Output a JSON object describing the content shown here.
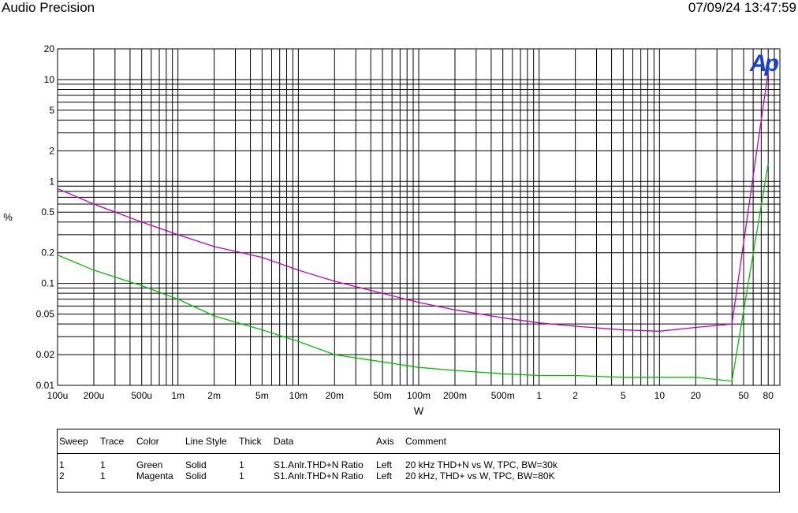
{
  "header": {
    "app_title": "Audio Precision",
    "timestamp": "07/09/24 13:47:59"
  },
  "chart_data": {
    "type": "line",
    "xlabel": "W",
    "ylabel": "%",
    "x_scale": "log",
    "y_scale": "log",
    "xlim": [
      0.0001,
      100
    ],
    "ylim": [
      0.01,
      20
    ],
    "grid": true,
    "logo": "Ap",
    "x_ticks": [
      {
        "v": 0.0001,
        "label": "100u"
      },
      {
        "v": 0.0002,
        "label": "200u"
      },
      {
        "v": 0.0005,
        "label": "500u"
      },
      {
        "v": 0.001,
        "label": "1m"
      },
      {
        "v": 0.002,
        "label": "2m"
      },
      {
        "v": 0.005,
        "label": "5m"
      },
      {
        "v": 0.01,
        "label": "10m"
      },
      {
        "v": 0.02,
        "label": "20m"
      },
      {
        "v": 0.05,
        "label": "50m"
      },
      {
        "v": 0.1,
        "label": "100m"
      },
      {
        "v": 0.2,
        "label": "200m"
      },
      {
        "v": 0.5,
        "label": "500m"
      },
      {
        "v": 1,
        "label": "1"
      },
      {
        "v": 2,
        "label": "2"
      },
      {
        "v": 5,
        "label": "5"
      },
      {
        "v": 10,
        "label": "10"
      },
      {
        "v": 20,
        "label": "20"
      },
      {
        "v": 50,
        "label": "50"
      },
      {
        "v": 80,
        "label": "80"
      }
    ],
    "y_ticks": [
      {
        "v": 20,
        "label": "20"
      },
      {
        "v": 10,
        "label": "10"
      },
      {
        "v": 5,
        "label": "5"
      },
      {
        "v": 2,
        "label": "2"
      },
      {
        "v": 1,
        "label": "1"
      },
      {
        "v": 0.5,
        "label": "0.5"
      },
      {
        "v": 0.2,
        "label": "0.2"
      },
      {
        "v": 0.1,
        "label": "0.1"
      },
      {
        "v": 0.05,
        "label": "0.05"
      },
      {
        "v": 0.02,
        "label": "0.02"
      },
      {
        "v": 0.01,
        "label": "0.01"
      }
    ],
    "series": [
      {
        "color": "#00c000",
        "x": [
          0.0001,
          0.0002,
          0.0005,
          0.001,
          0.002,
          0.005,
          0.01,
          0.02,
          0.05,
          0.1,
          0.2,
          0.5,
          1,
          2,
          5,
          10,
          20,
          40,
          80
        ],
        "y": [
          0.19,
          0.135,
          0.095,
          0.07,
          0.048,
          0.035,
          0.027,
          0.02,
          0.017,
          0.015,
          0.014,
          0.013,
          0.0125,
          0.0125,
          0.012,
          0.012,
          0.012,
          0.011,
          1.5
        ]
      },
      {
        "color": "#c000c0",
        "x": [
          0.0001,
          0.0002,
          0.0005,
          0.001,
          0.002,
          0.005,
          0.01,
          0.02,
          0.05,
          0.1,
          0.2,
          0.5,
          1,
          2,
          5,
          10,
          20,
          40,
          80
        ],
        "y": [
          0.85,
          0.6,
          0.4,
          0.3,
          0.23,
          0.18,
          0.135,
          0.105,
          0.08,
          0.065,
          0.055,
          0.046,
          0.041,
          0.038,
          0.035,
          0.034,
          0.037,
          0.04,
          12
        ]
      }
    ]
  },
  "legend": {
    "headers": {
      "sweep": "Sweep",
      "trace": "Trace",
      "color": "Color",
      "line_style": "Line Style",
      "thick": "Thick",
      "data": "Data",
      "axis": "Axis",
      "comment": "Comment"
    },
    "rows": [
      {
        "sweep": "1",
        "trace": "1",
        "color": "Green",
        "line_style": "Solid",
        "thick": "1",
        "data": "S1.Anlr.THD+N Ratio",
        "axis": "Left",
        "comment": "20 kHz THD+N vs W, TPC, BW=30k"
      },
      {
        "sweep": "2",
        "trace": "1",
        "color": "Magenta",
        "line_style": "Solid",
        "thick": "1",
        "data": "S1.Anlr.THD+N Ratio",
        "axis": "Left",
        "comment": "20 kHz, THD+ vs W, TPC, BW=80K"
      }
    ]
  }
}
